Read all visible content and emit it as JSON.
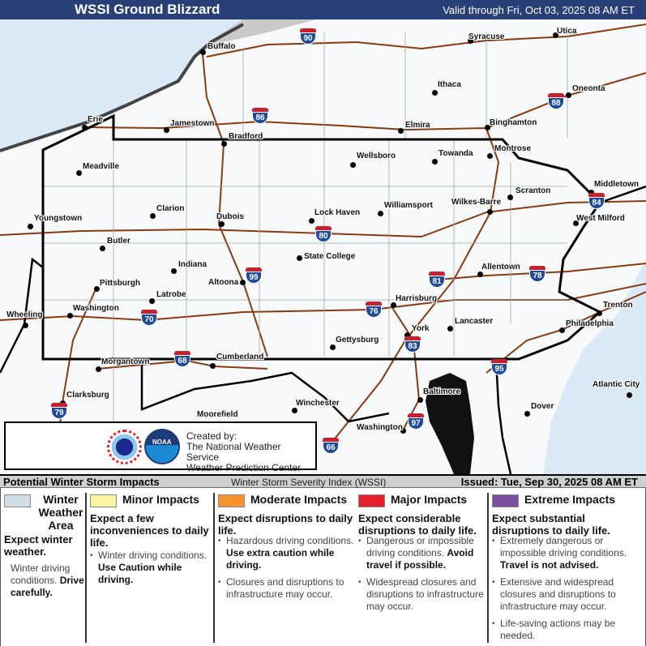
{
  "header": {
    "title": "WSSI Ground Blizzard",
    "valid": "Valid through Fri, Oct 03, 2025 08 AM ET"
  },
  "map": {
    "colors": {
      "background": "#f8f9fb",
      "water": "#dceaf7",
      "canada": "#c9c9c9",
      "roads": "#8b3a0e",
      "state_border": "#000000"
    },
    "cities": [
      "Syracuse",
      "Utica",
      "Buffalo",
      "Ithaca",
      "Oneonta",
      "Erie",
      "Jamestown",
      "Elmira",
      "Binghamton",
      "Bradford",
      "Wellsboro",
      "Towanda",
      "Montrose",
      "Meadville",
      "Middletown",
      "Scranton",
      "Williamsport",
      "Wilkes-Barre",
      "Lock Haven",
      "Clarion",
      "Dubois",
      "Youngstown",
      "West Milford",
      "Butler",
      "State College",
      "Indiana",
      "Allentown",
      "Pittsburgh",
      "Altoona",
      "Latrobe",
      "Harrisburg",
      "Trenton",
      "Washington",
      "Wheeling",
      "Lancaster",
      "Philadelphia",
      "York",
      "Gettysburg",
      "Morgantown",
      "Cumberland",
      "Clarksburg",
      "Baltimore",
      "Atlantic City",
      "Winchester",
      "Dover",
      "Moorefield",
      "Washington"
    ],
    "interstates": [
      "90",
      "86",
      "88",
      "84",
      "80",
      "81",
      "78",
      "99",
      "76",
      "70",
      "83",
      "68",
      "95",
      "79",
      "97",
      "66"
    ]
  },
  "credit": {
    "line1": "Created by:",
    "line2": "The National Weather Service",
    "line3": "Weather Prediction Center",
    "logos": [
      "NWS logo",
      "NOAA"
    ]
  },
  "legend_bar": {
    "title": "Potential Winter Storm Impacts",
    "index": "Winter Storm Severity Index (WSSI)",
    "issued": "Issued: Tue, Sep 30, 2025 08 AM ET"
  },
  "legend": [
    {
      "color": "#d3dfe8",
      "title": "Winter Weather Area",
      "expect": "Expect winter weather.",
      "bullets": [
        {
          "text": "Winter driving conditions.",
          "bold": "Drive carefully."
        }
      ]
    },
    {
      "color": "#fbf5a0",
      "title": "Minor Impacts",
      "expect": "Expect a few inconveniences to daily life.",
      "bullets": [
        {
          "text": "Winter driving conditions.",
          "bold": "Use Caution while driving."
        }
      ]
    },
    {
      "color": "#f7932f",
      "title": "Moderate Impacts",
      "expect": "Expect disruptions to daily life.",
      "bullets": [
        {
          "text": "Hazardous driving conditions.",
          "bold": "Use extra caution while driving."
        },
        {
          "text": "Closures and disruptions to infrastructure may occur.",
          "bold": ""
        }
      ]
    },
    {
      "color": "#e3202c",
      "title": "Major Impacts",
      "expect": "Expect considerable disruptions to daily life.",
      "bullets": [
        {
          "text": "Dangerous or impossible driving conditions.",
          "bold": "Avoid travel if possible."
        },
        {
          "text": "Widespread closures and disruptions to infrastructure may occur.",
          "bold": ""
        }
      ]
    },
    {
      "color": "#7b4fa0",
      "title": "Extreme Impacts",
      "expect": "Expect substantial disruptions to daily life.",
      "bullets": [
        {
          "text": "Extremely dangerous or impossible driving conditions.",
          "bold": "Travel is not advised."
        },
        {
          "text": "Extensive and widespread closures and disruptions to infrastructure may occur.",
          "bold": ""
        },
        {
          "text": "Life-saving actions may be needed.",
          "bold": ""
        }
      ]
    }
  ]
}
